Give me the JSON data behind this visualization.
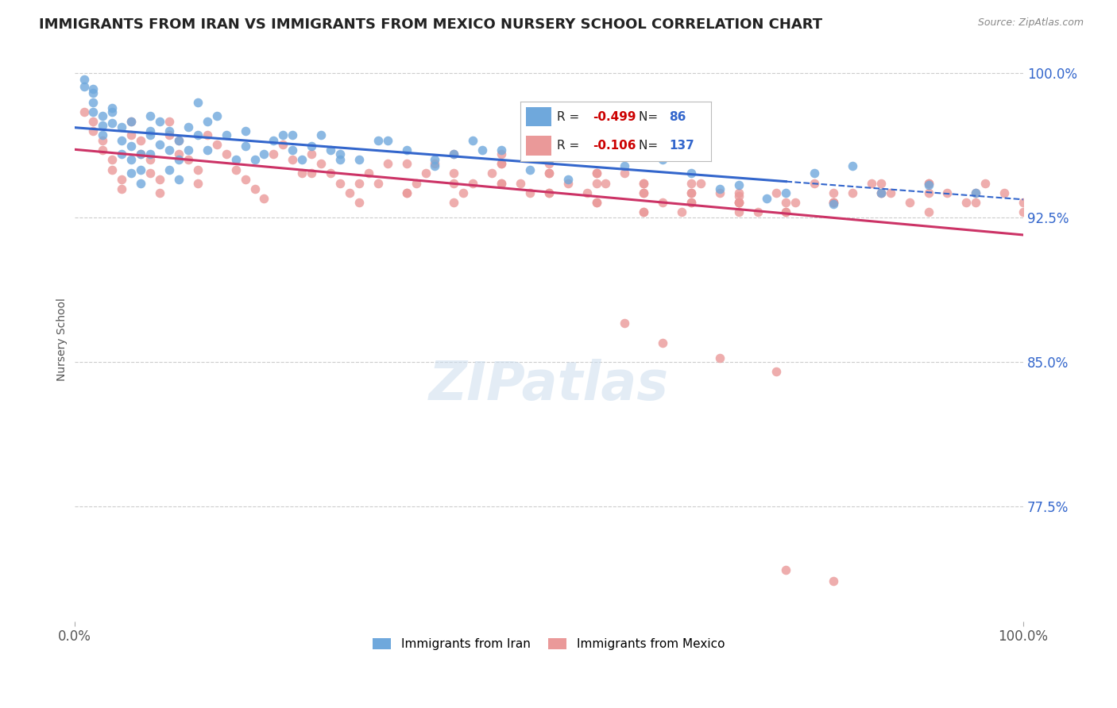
{
  "title": "IMMIGRANTS FROM IRAN VS IMMIGRANTS FROM MEXICO NURSERY SCHOOL CORRELATION CHART",
  "source": "Source: ZipAtlas.com",
  "ylabel": "Nursery School",
  "xlim": [
    0.0,
    1.0
  ],
  "ylim": [
    0.715,
    1.008
  ],
  "yticks": [
    0.775,
    0.85,
    0.925,
    1.0
  ],
  "ytick_labels": [
    "77.5%",
    "85.0%",
    "92.5%",
    "100.0%"
  ],
  "xtick_labels": [
    "0.0%",
    "100.0%"
  ],
  "legend_R_iran": "-0.499",
  "legend_N_iran": "86",
  "legend_R_mexico": "-0.106",
  "legend_N_mexico": "137",
  "iran_color": "#6fa8dc",
  "mexico_color": "#ea9999",
  "iran_line_color": "#3366cc",
  "mexico_line_color": "#cc3366",
  "iran_scatter_x": [
    0.01,
    0.01,
    0.02,
    0.02,
    0.02,
    0.03,
    0.03,
    0.03,
    0.04,
    0.04,
    0.05,
    0.05,
    0.05,
    0.06,
    0.06,
    0.06,
    0.07,
    0.07,
    0.07,
    0.08,
    0.08,
    0.08,
    0.09,
    0.09,
    0.1,
    0.1,
    0.1,
    0.11,
    0.11,
    0.12,
    0.12,
    0.13,
    0.13,
    0.14,
    0.15,
    0.16,
    0.17,
    0.18,
    0.19,
    0.2,
    0.21,
    0.22,
    0.23,
    0.24,
    0.25,
    0.26,
    0.27,
    0.28,
    0.3,
    0.32,
    0.35,
    0.38,
    0.4,
    0.42,
    0.45,
    0.48,
    0.5,
    0.52,
    0.55,
    0.58,
    0.62,
    0.65,
    0.7,
    0.75,
    0.8,
    0.85,
    0.9,
    0.95,
    0.68,
    0.73,
    0.78,
    0.82,
    0.52,
    0.48,
    0.43,
    0.38,
    0.33,
    0.28,
    0.23,
    0.18,
    0.14,
    0.11,
    0.08,
    0.06,
    0.04,
    0.02
  ],
  "iran_scatter_y": [
    0.997,
    0.993,
    0.99,
    0.985,
    0.98,
    0.978,
    0.973,
    0.968,
    0.98,
    0.974,
    0.972,
    0.965,
    0.958,
    0.962,
    0.955,
    0.948,
    0.958,
    0.95,
    0.943,
    0.978,
    0.968,
    0.958,
    0.975,
    0.963,
    0.97,
    0.96,
    0.95,
    0.955,
    0.945,
    0.972,
    0.96,
    0.985,
    0.968,
    0.975,
    0.978,
    0.968,
    0.955,
    0.962,
    0.955,
    0.958,
    0.965,
    0.968,
    0.96,
    0.955,
    0.962,
    0.968,
    0.96,
    0.958,
    0.955,
    0.965,
    0.96,
    0.952,
    0.958,
    0.965,
    0.96,
    0.968,
    0.955,
    0.96,
    0.958,
    0.952,
    0.955,
    0.948,
    0.942,
    0.938,
    0.932,
    0.938,
    0.942,
    0.938,
    0.94,
    0.935,
    0.948,
    0.952,
    0.945,
    0.95,
    0.96,
    0.955,
    0.965,
    0.955,
    0.968,
    0.97,
    0.96,
    0.965,
    0.97,
    0.975,
    0.982,
    0.992
  ],
  "mexico_scatter_x": [
    0.01,
    0.02,
    0.02,
    0.03,
    0.03,
    0.04,
    0.04,
    0.05,
    0.05,
    0.06,
    0.06,
    0.07,
    0.07,
    0.08,
    0.08,
    0.09,
    0.09,
    0.1,
    0.1,
    0.11,
    0.11,
    0.12,
    0.13,
    0.13,
    0.14,
    0.15,
    0.16,
    0.17,
    0.18,
    0.19,
    0.2,
    0.21,
    0.22,
    0.23,
    0.24,
    0.25,
    0.26,
    0.27,
    0.28,
    0.29,
    0.3,
    0.31,
    0.32,
    0.33,
    0.35,
    0.36,
    0.37,
    0.38,
    0.4,
    0.41,
    0.42,
    0.44,
    0.45,
    0.47,
    0.48,
    0.5,
    0.52,
    0.54,
    0.56,
    0.58,
    0.6,
    0.62,
    0.64,
    0.66,
    0.68,
    0.7,
    0.72,
    0.74,
    0.76,
    0.78,
    0.8,
    0.82,
    0.84,
    0.86,
    0.88,
    0.9,
    0.92,
    0.94,
    0.96,
    0.98,
    1.0,
    0.25,
    0.3,
    0.35,
    0.4,
    0.45,
    0.5,
    0.55,
    0.6,
    0.65,
    0.7,
    0.55,
    0.6,
    0.65,
    0.7,
    0.75,
    0.8,
    0.85,
    0.9,
    0.45,
    0.5,
    0.55,
    0.6,
    0.65,
    0.7,
    0.75,
    0.8,
    0.85,
    0.9,
    0.95,
    0.4,
    0.45,
    0.5,
    0.55,
    0.6,
    0.65,
    0.7,
    0.75,
    0.8,
    0.85,
    0.9,
    0.95,
    1.0,
    0.35,
    0.4,
    0.45,
    0.5,
    0.55,
    0.6,
    0.65,
    0.7,
    0.75,
    0.8,
    0.58,
    0.62,
    0.68,
    0.74
  ],
  "mexico_scatter_y": [
    0.98,
    0.975,
    0.97,
    0.965,
    0.96,
    0.955,
    0.95,
    0.945,
    0.94,
    0.975,
    0.968,
    0.965,
    0.958,
    0.955,
    0.948,
    0.945,
    0.938,
    0.975,
    0.968,
    0.965,
    0.958,
    0.955,
    0.95,
    0.943,
    0.968,
    0.963,
    0.958,
    0.95,
    0.945,
    0.94,
    0.935,
    0.958,
    0.963,
    0.955,
    0.948,
    0.958,
    0.953,
    0.948,
    0.943,
    0.938,
    0.933,
    0.948,
    0.943,
    0.953,
    0.938,
    0.943,
    0.948,
    0.953,
    0.943,
    0.938,
    0.943,
    0.948,
    0.953,
    0.943,
    0.938,
    0.948,
    0.943,
    0.938,
    0.943,
    0.948,
    0.938,
    0.933,
    0.928,
    0.943,
    0.938,
    0.933,
    0.928,
    0.938,
    0.933,
    0.943,
    0.933,
    0.938,
    0.943,
    0.938,
    0.933,
    0.928,
    0.938,
    0.933,
    0.943,
    0.938,
    0.933,
    0.948,
    0.943,
    0.938,
    0.933,
    0.943,
    0.938,
    0.933,
    0.928,
    0.943,
    0.938,
    0.948,
    0.943,
    0.938,
    0.933,
    0.928,
    0.933,
    0.938,
    0.943,
    0.958,
    0.953,
    0.948,
    0.943,
    0.938,
    0.933,
    0.928,
    0.933,
    0.938,
    0.943,
    0.938,
    0.958,
    0.953,
    0.948,
    0.943,
    0.938,
    0.933,
    0.928,
    0.933,
    0.938,
    0.943,
    0.938,
    0.933,
    0.928,
    0.953,
    0.948,
    0.943,
    0.938,
    0.933,
    0.928,
    0.933,
    0.936,
    0.742,
    0.736,
    0.87,
    0.86,
    0.852,
    0.845
  ]
}
